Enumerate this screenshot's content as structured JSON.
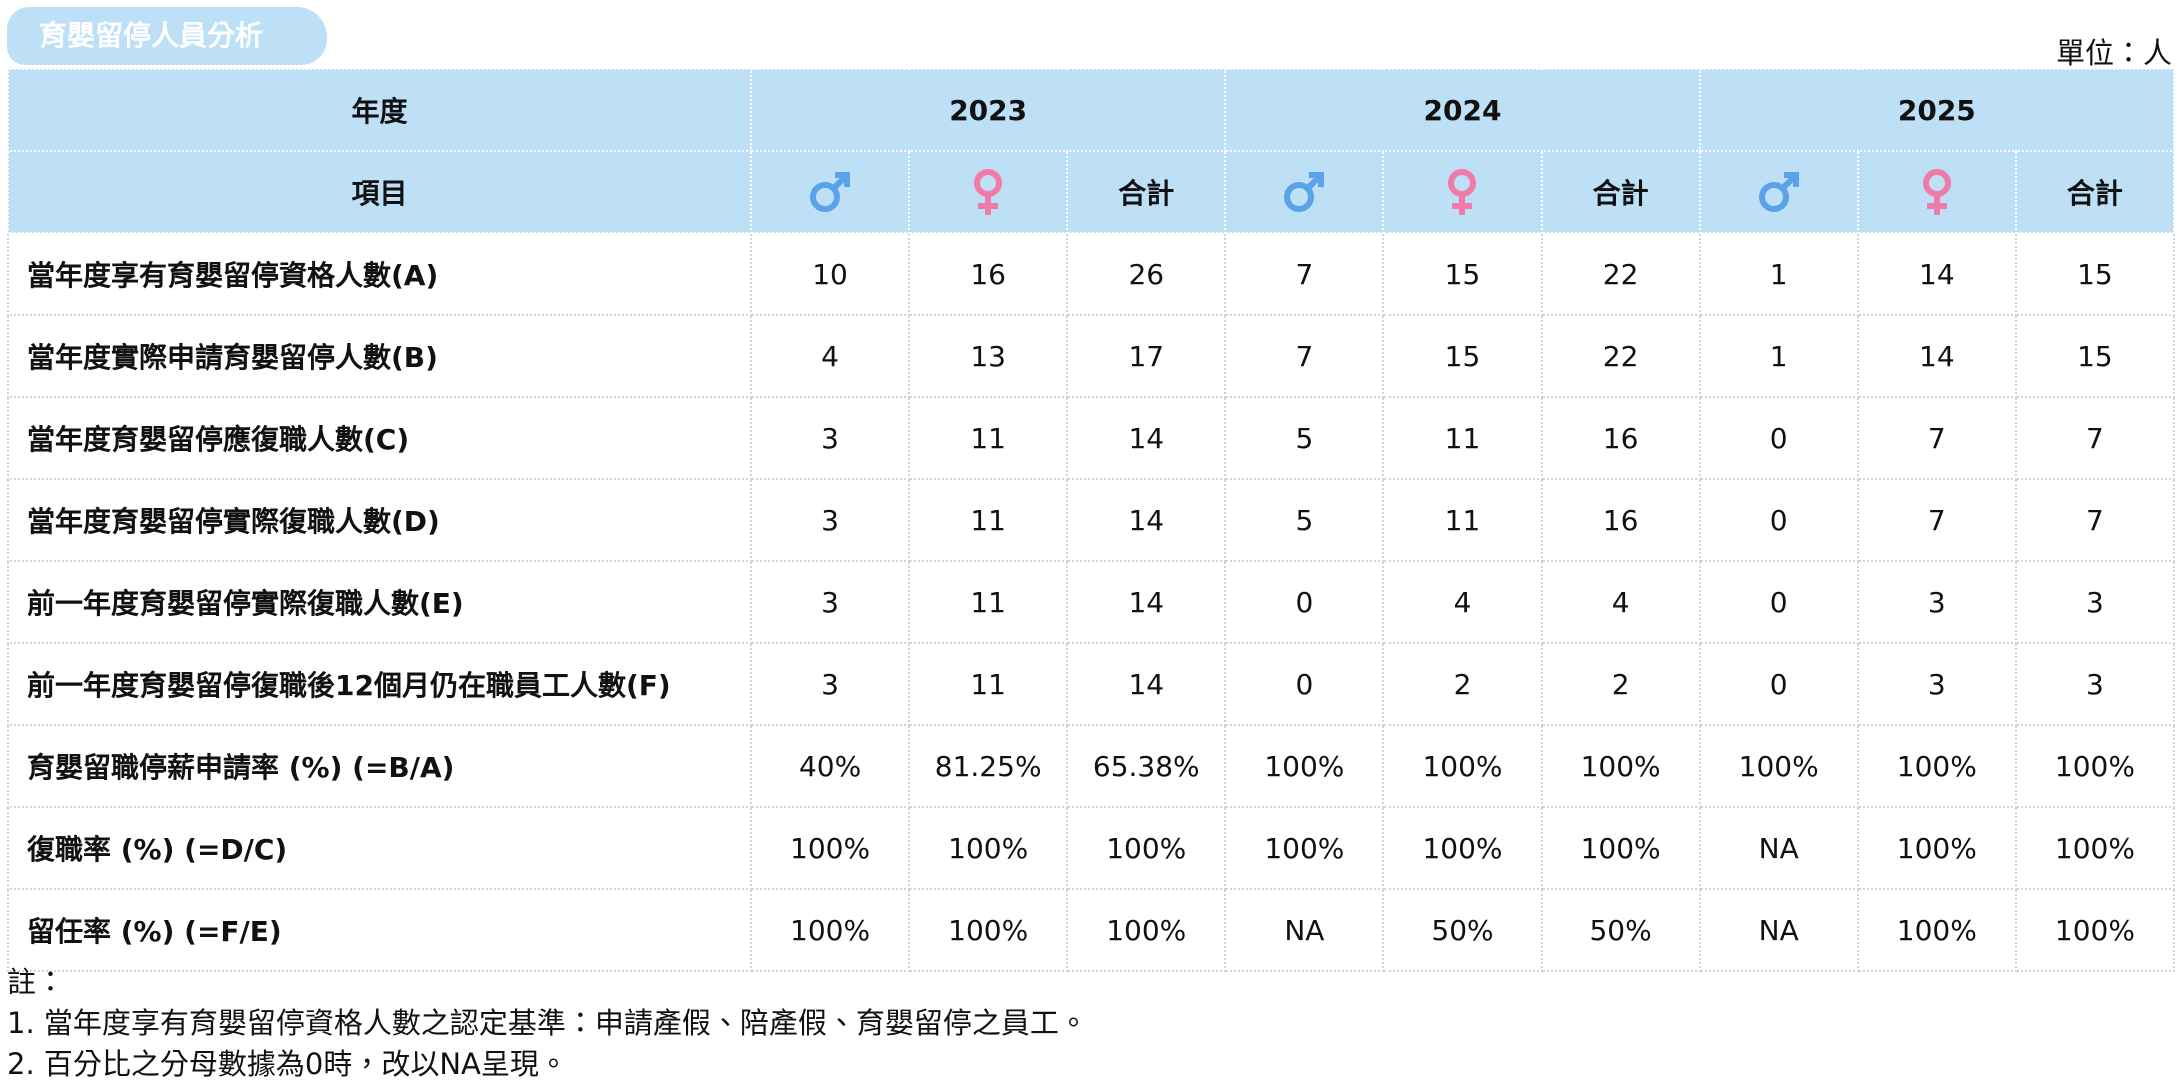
{
  "header": {
    "title": "育嬰留停人員分析",
    "unit": "單位：人"
  },
  "table": {
    "year_label": "年度",
    "item_label": "項目",
    "years": [
      "2023",
      "2024",
      "2025"
    ],
    "total_label": "合計",
    "rows": [
      {
        "label": "當年度享有育嬰留停資格人數(A)",
        "values": [
          10,
          16,
          26,
          7,
          15,
          22,
          1,
          14,
          15
        ]
      },
      {
        "label": "當年度實際申請育嬰留停人數(B)",
        "values": [
          4,
          13,
          17,
          7,
          15,
          22,
          1,
          14,
          15
        ]
      },
      {
        "label": "當年度育嬰留停應復職人數(C)",
        "values": [
          3,
          11,
          14,
          5,
          11,
          16,
          0,
          7,
          7
        ]
      },
      {
        "label": "當年度育嬰留停實際復職人數(D)",
        "values": [
          3,
          11,
          14,
          5,
          11,
          16,
          0,
          7,
          7
        ]
      },
      {
        "label": "前一年度育嬰留停實際復職人數(E)",
        "values": [
          3,
          11,
          14,
          0,
          4,
          4,
          0,
          3,
          3
        ]
      },
      {
        "label": "前一年度育嬰留停復職後12個月仍在職員工人數(F)",
        "values": [
          3,
          11,
          14,
          0,
          2,
          2,
          0,
          3,
          3
        ]
      },
      {
        "label": "育嬰留職停薪申請率 (%) (=B/A)",
        "values": [
          "40%",
          "81.25%",
          "65.38%",
          "100%",
          "100%",
          "100%",
          "100%",
          "100%",
          "100%"
        ]
      },
      {
        "label": "復職率 (%) (=D/C)",
        "values": [
          "100%",
          "100%",
          "100%",
          "100%",
          "100%",
          "100%",
          "NA",
          "100%",
          "100%"
        ]
      },
      {
        "label": "留任率 (%) (=F/E)",
        "values": [
          "100%",
          "100%",
          "100%",
          "NA",
          "50%",
          "50%",
          "NA",
          "100%",
          "100%"
        ]
      }
    ]
  },
  "notes": {
    "heading": "註：",
    "items": [
      "1. 當年度享有育嬰留停資格人數之認定基準：申請產假、陪產假、育嬰留停之員工。",
      "2. 百分比之分母數據為0時，改以NA呈現。"
    ]
  }
}
